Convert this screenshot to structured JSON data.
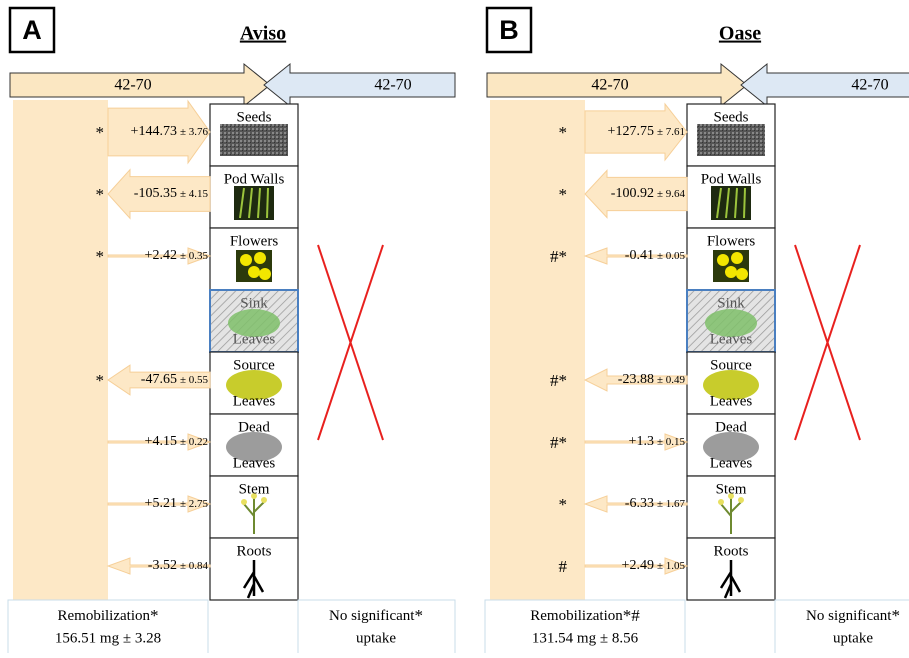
{
  "panels": [
    {
      "letter": "A",
      "title": "Aviso",
      "left_period": "42-70",
      "right_period": "42-70",
      "organs": [
        {
          "label": [
            "Seeds"
          ],
          "flux": "+144.73",
          "sd": "± 3.76",
          "mark": "*"
        },
        {
          "label": [
            "Pod Walls"
          ],
          "flux": "-105.35",
          "sd": "± 4.15",
          "mark": "*"
        },
        {
          "label": [
            "Flowers"
          ],
          "flux": "+2.42",
          "sd": "± 0.35",
          "mark": "*"
        },
        {
          "label": [
            "Sink",
            "Leaves"
          ],
          "highlighted": true
        },
        {
          "label": [
            "Source",
            "Leaves"
          ],
          "flux": "-47.65",
          "sd": "± 0.55",
          "mark": "*"
        },
        {
          "label": [
            "Dead",
            "Leaves"
          ],
          "flux": "+4.15",
          "sd": "± 0.22"
        },
        {
          "label": [
            "Stem"
          ],
          "flux": "+5.21",
          "sd": "± 2.75"
        },
        {
          "label": [
            "Roots"
          ],
          "flux": "-3.52",
          "sd": "± 0.84"
        }
      ],
      "remobilization": {
        "label": "Remobilization",
        "mark": "*",
        "amount": "156.51 mg ± 3.28"
      },
      "uptake": {
        "label": "No significant",
        "mark": "*",
        "line2": "uptake"
      }
    },
    {
      "letter": "B",
      "title": "Oase",
      "left_period": "42-70",
      "right_period": "42-70",
      "organs": [
        {
          "label": [
            "Seeds"
          ],
          "flux": "+127.75",
          "sd": "± 7.61",
          "mark": "*"
        },
        {
          "label": [
            "Pod Walls"
          ],
          "flux": "-100.92",
          "sd": "± 9.64",
          "mark": "*"
        },
        {
          "label": [
            "Flowers"
          ],
          "flux": "-0.41",
          "sd": "± 0.05",
          "mark": "#*"
        },
        {
          "label": [
            "Sink",
            "Leaves"
          ],
          "highlighted": true
        },
        {
          "label": [
            "Source",
            "Leaves"
          ],
          "flux": "-23.88",
          "sd": "± 0.49",
          "mark": "#*"
        },
        {
          "label": [
            "Dead",
            "Leaves"
          ],
          "flux": "+1.3",
          "sd": "± 0.15",
          "mark": "#*"
        },
        {
          "label": [
            "Stem"
          ],
          "flux": "-6.33",
          "sd": "± 1.67",
          "mark": "*"
        },
        {
          "label": [
            "Roots"
          ],
          "flux": "+2.49",
          "sd": "± 1.05",
          "mark": "#"
        }
      ],
      "remobilization": {
        "label": "Remobilization",
        "mark": "*#",
        "amount": "131.54 mg ± 8.56"
      },
      "uptake": {
        "label": "No significant",
        "mark": "*",
        "line2": "uptake"
      }
    }
  ]
}
